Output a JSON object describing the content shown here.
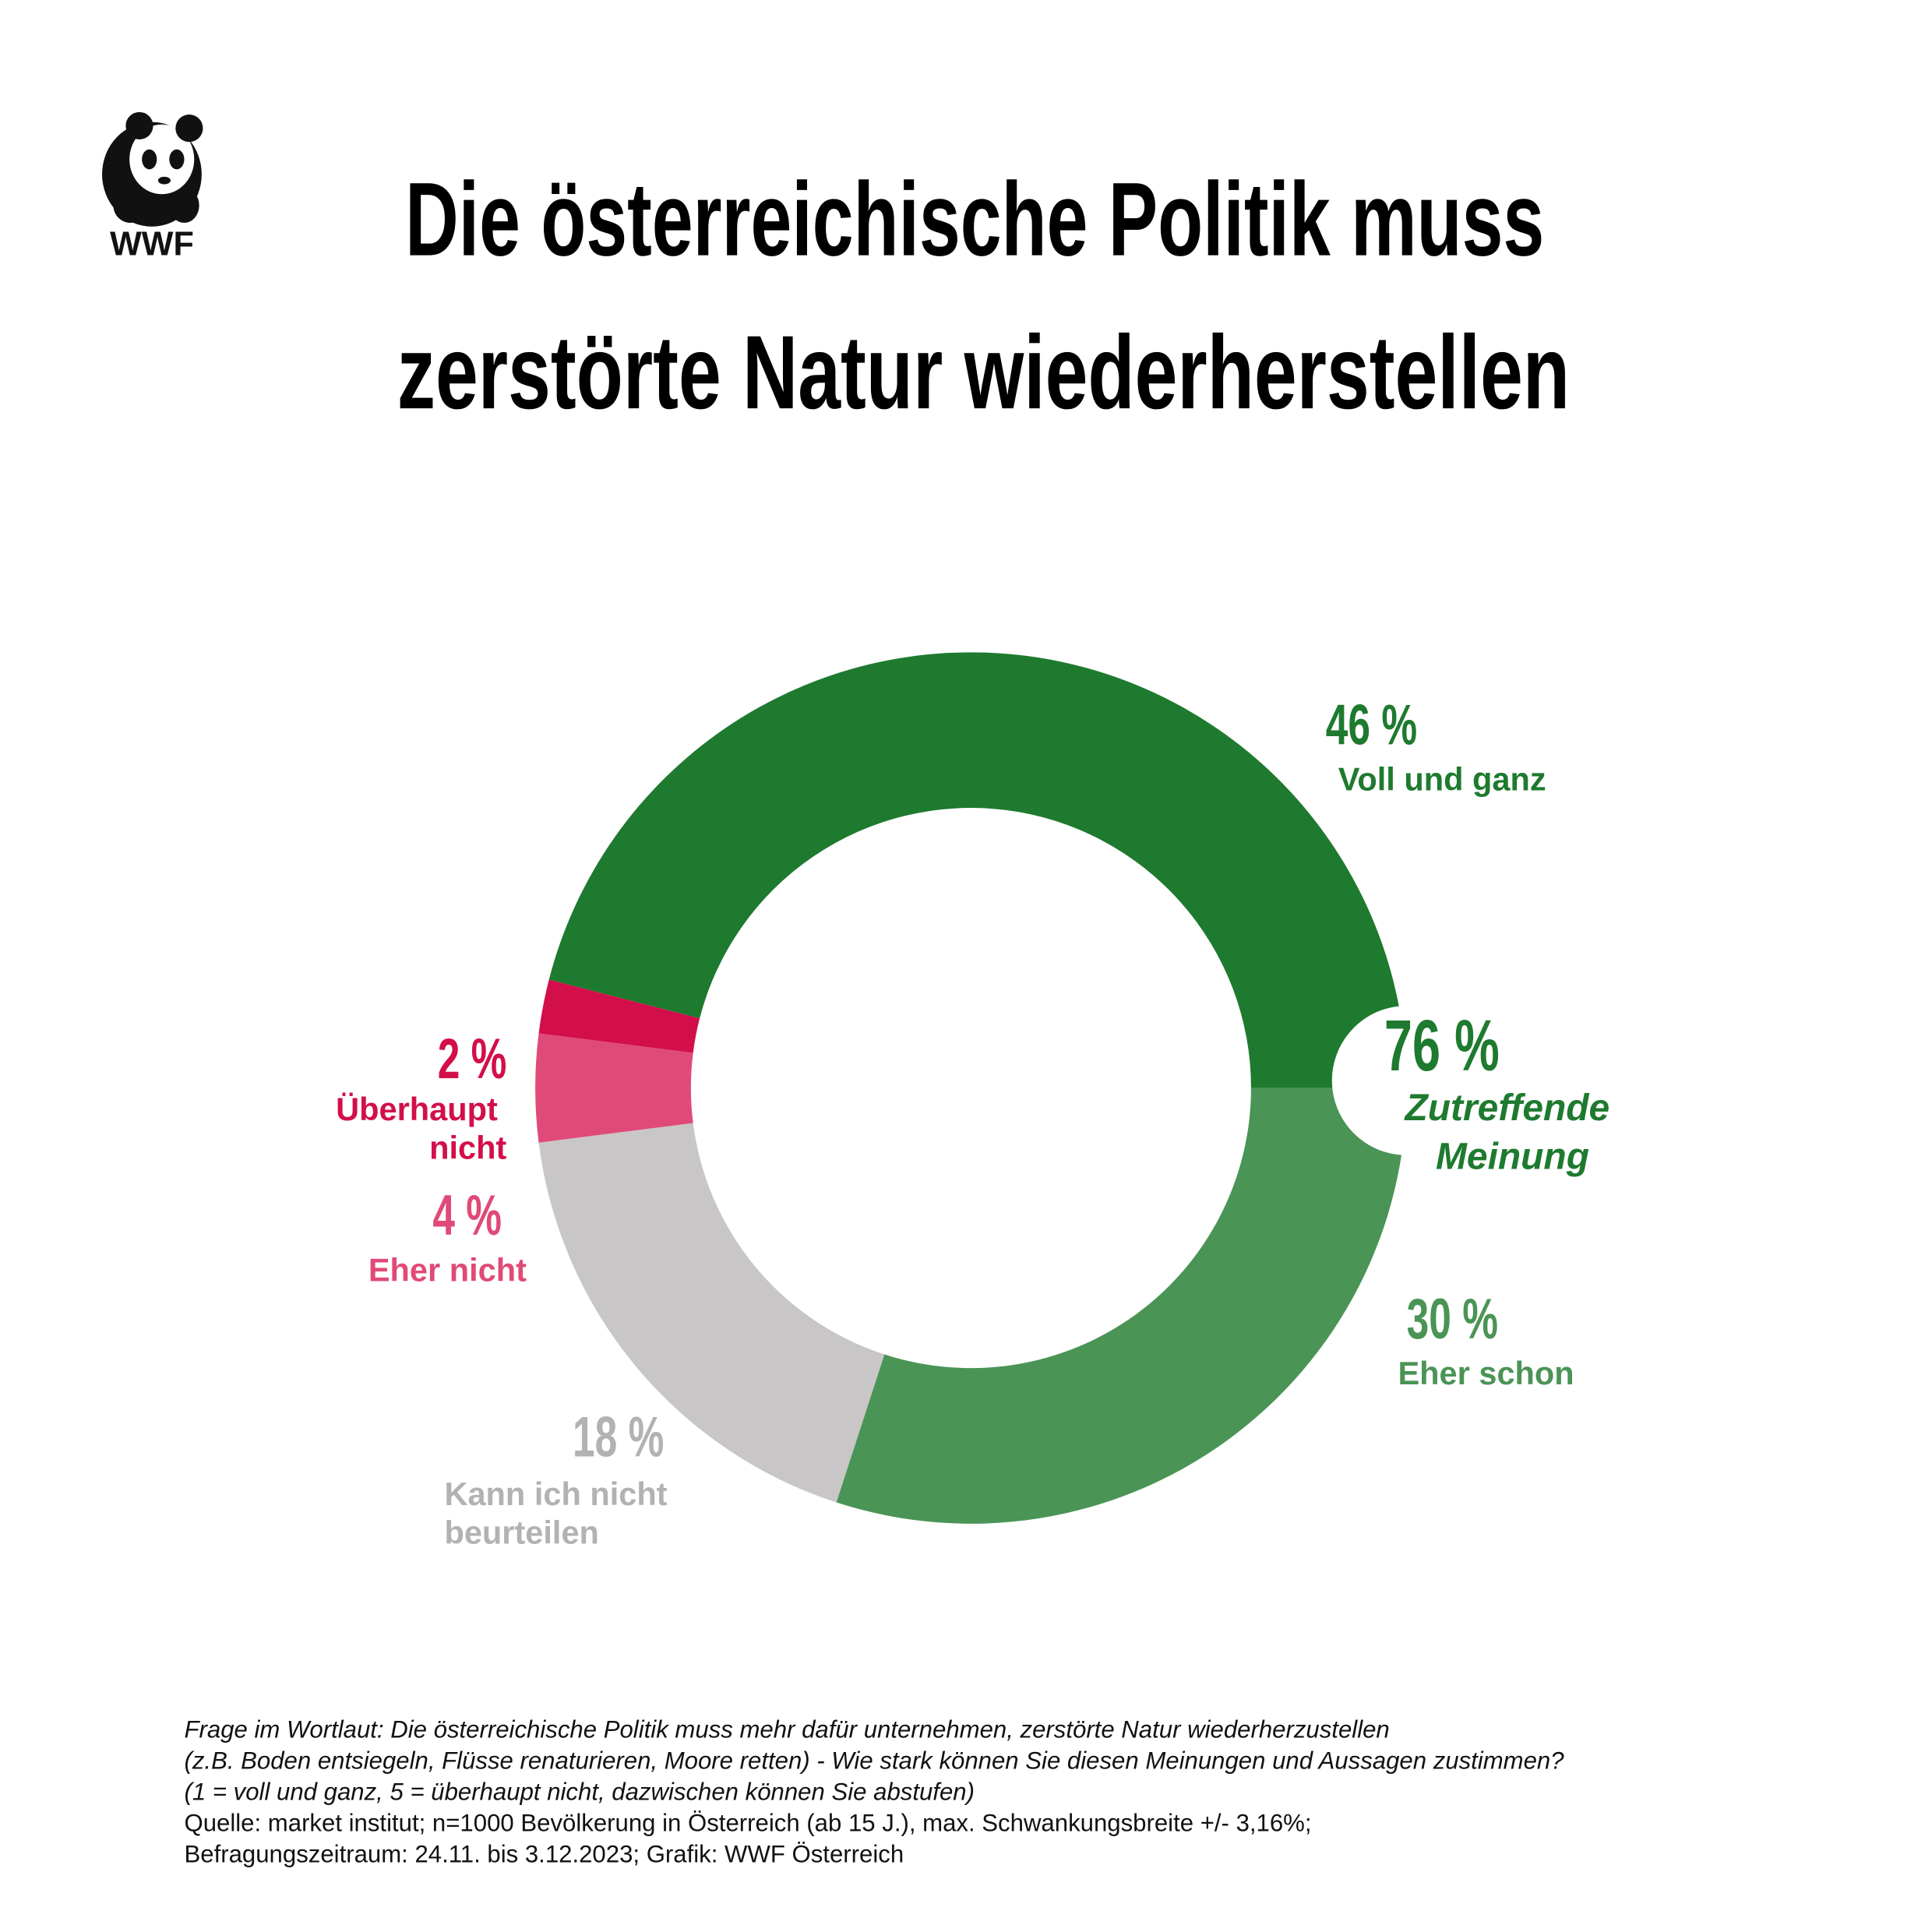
{
  "logo": "WWF",
  "chart_data": {
    "type": "donut",
    "title": [
      "Die österreichische Politik muss",
      "zerstörte Natur wiederherstellen"
    ],
    "categories": [
      "Voll und ganz",
      "Eher schon",
      "Kann ich nicht beurteilen",
      "Eher nicht",
      "Überhaupt nicht"
    ],
    "values": [
      46,
      30,
      18,
      4,
      2
    ],
    "value_labels": [
      "46 %",
      "30 %",
      "18 %",
      "4 %",
      "2 %"
    ],
    "colors": [
      "#1e7a2e",
      "#4a9455",
      "#c9c6c7",
      "#e04a78",
      "#d20f4a"
    ],
    "annotation": {
      "label": "76 %",
      "text": "Zutreffende Meinung"
    },
    "footnote": [
      "Frage im Wortlaut: Die österreichische Politik muss mehr dafür unternehmen, zerstörte Natur wiederherzustellen",
      "(z.B. Boden entsiegeln, Flüsse renaturieren, Moore retten) - Wie stark können Sie diesen Meinungen und Aussagen zustimmen?",
      "(1 = voll und ganz, 5 = überhaupt nicht, dazwischen können Sie abstufen)",
      "Quelle: market institut; n=1000 Bevölkerung in Österreich (ab 15 J.), max. Schwankungsbreite +/- 3,16%;",
      "Befragungszeitraum: 24.11. bis 3.12.2023; Grafik: WWF Österreich"
    ]
  }
}
